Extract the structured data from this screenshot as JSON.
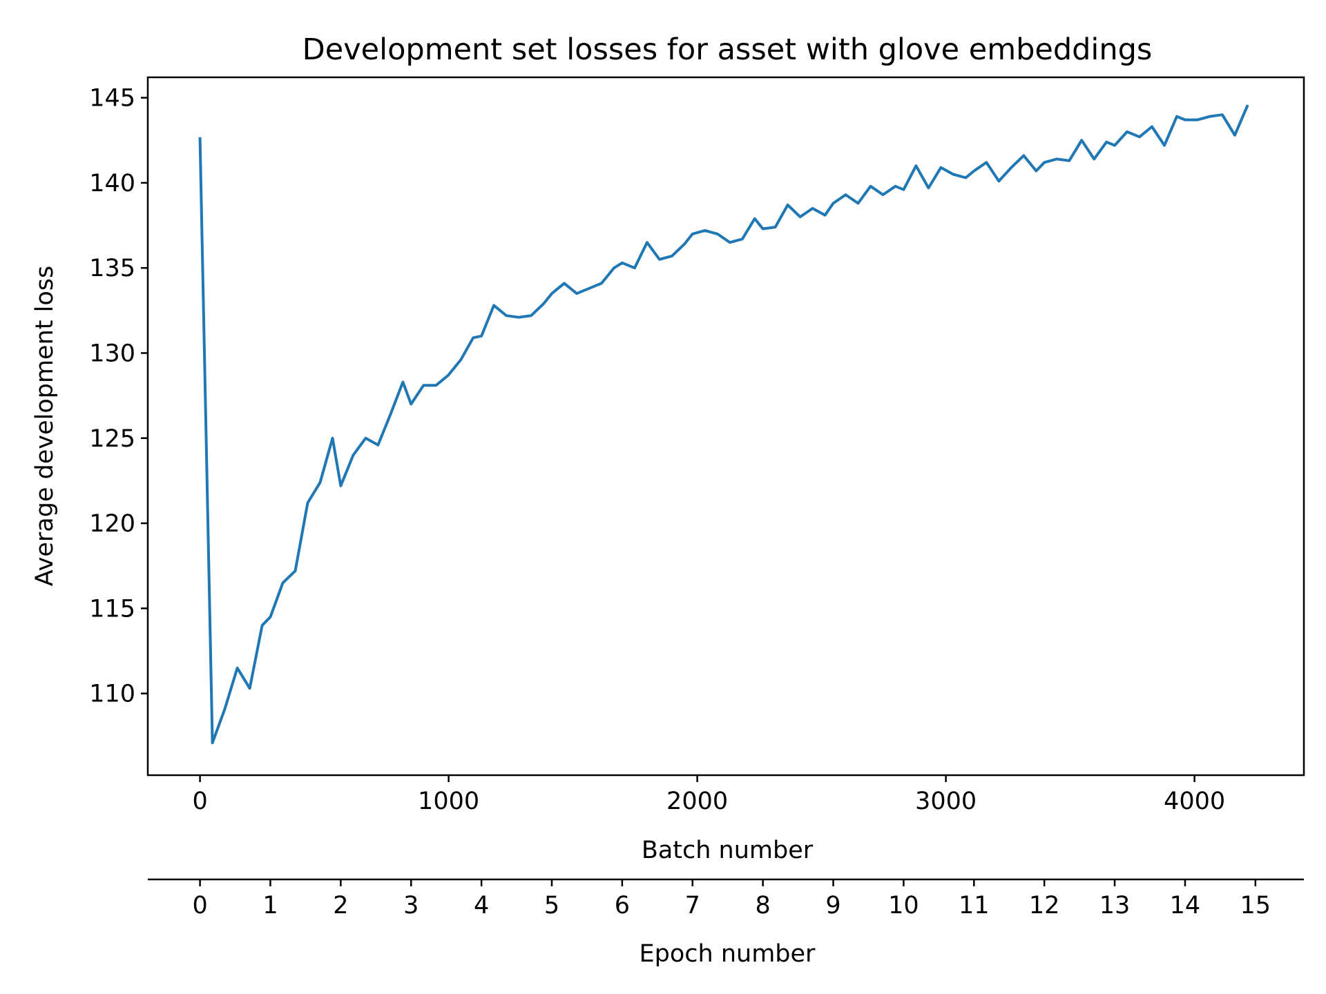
{
  "chart_data": {
    "type": "line",
    "title": "Development set losses for asset with glove embeddings",
    "xlabel": "Batch number",
    "ylabel": "Average development loss",
    "secondary_xlabel": "Epoch number",
    "xlim": [
      -210,
      4440
    ],
    "ylim": [
      105.2,
      146.2
    ],
    "x_ticks": [
      0,
      1000,
      2000,
      3000,
      4000
    ],
    "y_ticks": [
      110,
      115,
      120,
      125,
      130,
      135,
      140,
      145
    ],
    "epoch_ticks": [
      0,
      1,
      2,
      3,
      4,
      5,
      6,
      7,
      8,
      9,
      10,
      11,
      12,
      13,
      14,
      15
    ],
    "epoch_batches": 283,
    "line_color": "#1f77b4",
    "grid": false,
    "series": [
      {
        "x": [
          0,
          50,
          100,
          150,
          200,
          250,
          283,
          333,
          383,
          433,
          483,
          533,
          566,
          616,
          666,
          716,
          766,
          816,
          849,
          899,
          949,
          999,
          1049,
          1099,
          1132,
          1182,
          1232,
          1282,
          1332,
          1382,
          1415,
          1465,
          1515,
          1565,
          1615,
          1665,
          1698,
          1748,
          1798,
          1848,
          1898,
          1948,
          1981,
          2031,
          2081,
          2131,
          2181,
          2231,
          2264,
          2314,
          2364,
          2414,
          2464,
          2514,
          2547,
          2597,
          2647,
          2697,
          2747,
          2797,
          2830,
          2880,
          2930,
          2980,
          3030,
          3080,
          3113,
          3163,
          3213,
          3263,
          3313,
          3363,
          3396,
          3446,
          3496,
          3546,
          3596,
          3646,
          3679,
          3729,
          3779,
          3829,
          3879,
          3929,
          3962,
          4012,
          4062,
          4112,
          4162,
          4212
        ],
        "y": [
          142.6,
          107.1,
          109.1,
          111.5,
          110.3,
          114.0,
          114.5,
          116.5,
          117.2,
          121.2,
          122.4,
          125.0,
          122.2,
          124.0,
          125.0,
          124.6,
          126.4,
          128.3,
          127.0,
          128.1,
          128.1,
          128.7,
          129.6,
          130.9,
          131.0,
          132.8,
          132.2,
          132.1,
          132.2,
          132.9,
          133.5,
          134.1,
          133.5,
          133.8,
          134.1,
          135.0,
          135.3,
          135.0,
          136.5,
          135.5,
          135.7,
          136.4,
          137.0,
          137.2,
          137.0,
          136.5,
          136.7,
          137.9,
          137.3,
          137.4,
          138.7,
          138.0,
          138.5,
          138.1,
          138.8,
          139.3,
          138.8,
          139.8,
          139.3,
          139.8,
          139.6,
          141.0,
          139.7,
          140.9,
          140.5,
          140.3,
          140.7,
          141.2,
          140.1,
          140.9,
          141.6,
          140.7,
          141.2,
          141.4,
          141.3,
          142.5,
          141.4,
          142.4,
          142.2,
          143.0,
          142.7,
          143.3,
          142.2,
          143.9,
          143.7,
          143.7,
          143.9,
          144.0,
          142.8,
          144.5
        ]
      }
    ]
  }
}
